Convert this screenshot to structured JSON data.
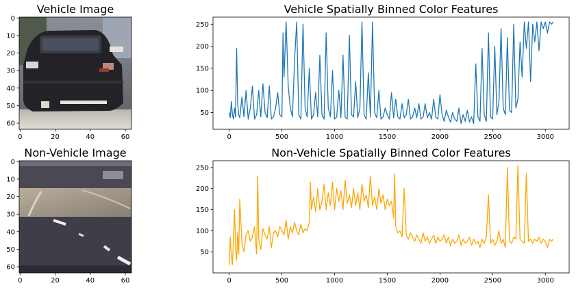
{
  "panels": [
    {
      "id": "vehicle-image",
      "title": "Vehicle Image",
      "type": "image",
      "xticks": [
        0,
        20,
        40,
        60
      ],
      "yticks": [
        0,
        10,
        20,
        30,
        40,
        50,
        60
      ],
      "xlim": [
        -0.5,
        63.5
      ],
      "ylim": [
        -0.5,
        63.5
      ]
    },
    {
      "id": "non-vehicle-image",
      "title": "Non-Vehicle Image",
      "type": "image",
      "xticks": [
        0,
        20,
        40,
        60
      ],
      "yticks": [
        0,
        10,
        20,
        30,
        40,
        50,
        60
      ],
      "xlim": [
        -0.5,
        63.5
      ],
      "ylim": [
        -0.5,
        63.5
      ]
    }
  ],
  "chart_data": [
    {
      "id": "vehicle-features",
      "type": "line",
      "title": "Vehicle Spatially Binned Color Features",
      "color": "#1f77b4",
      "xlim": [
        -154,
        3226
      ],
      "ylim": [
        12,
        266
      ],
      "xticks": [
        0,
        500,
        1000,
        1500,
        2000,
        2500,
        3000
      ],
      "yticks": [
        50,
        100,
        150,
        200,
        250
      ],
      "x": [
        0,
        10,
        20,
        30,
        40,
        50,
        60,
        70,
        80,
        90,
        100,
        120,
        140,
        160,
        180,
        200,
        220,
        240,
        260,
        280,
        300,
        320,
        340,
        360,
        380,
        400,
        420,
        440,
        460,
        480,
        500,
        510,
        520,
        540,
        560,
        580,
        600,
        620,
        640,
        660,
        680,
        700,
        720,
        740,
        760,
        780,
        800,
        820,
        840,
        860,
        880,
        900,
        920,
        940,
        960,
        980,
        1000,
        1020,
        1040,
        1060,
        1080,
        1100,
        1120,
        1140,
        1160,
        1180,
        1200,
        1220,
        1240,
        1260,
        1280,
        1300,
        1320,
        1340,
        1360,
        1380,
        1400,
        1420,
        1440,
        1460,
        1480,
        1500,
        1520,
        1540,
        1560,
        1580,
        1600,
        1620,
        1640,
        1660,
        1680,
        1700,
        1720,
        1740,
        1760,
        1780,
        1800,
        1820,
        1840,
        1860,
        1880,
        1900,
        1920,
        1940,
        1960,
        1980,
        2000,
        2020,
        2040,
        2060,
        2080,
        2100,
        2120,
        2140,
        2160,
        2180,
        2200,
        2220,
        2240,
        2260,
        2280,
        2300,
        2320,
        2340,
        2360,
        2380,
        2400,
        2420,
        2440,
        2460,
        2480,
        2500,
        2520,
        2540,
        2560,
        2580,
        2600,
        2620,
        2640,
        2660,
        2680,
        2700,
        2720,
        2740,
        2760,
        2780,
        2800,
        2820,
        2840,
        2860,
        2880,
        2900,
        2920,
        2940,
        2960,
        2980,
        3000,
        3020,
        3040,
        3060,
        3072
      ],
      "y": [
        50,
        38,
        75,
        45,
        35,
        60,
        40,
        195,
        70,
        45,
        38,
        85,
        40,
        100,
        35,
        60,
        110,
        35,
        45,
        100,
        40,
        115,
        50,
        38,
        110,
        35,
        40,
        60,
        95,
        45,
        40,
        230,
        130,
        255,
        110,
        60,
        40,
        170,
        255,
        45,
        35,
        250,
        60,
        40,
        150,
        35,
        45,
        95,
        40,
        180,
        45,
        35,
        230,
        60,
        40,
        145,
        35,
        40,
        100,
        38,
        180,
        40,
        35,
        225,
        45,
        40,
        120,
        38,
        60,
        255,
        45,
        35,
        140,
        40,
        255,
        50,
        38,
        100,
        35,
        40,
        60,
        45,
        35,
        95,
        38,
        80,
        40,
        35,
        70,
        38,
        45,
        80,
        35,
        40,
        60,
        38,
        70,
        35,
        40,
        70,
        38,
        50,
        35,
        80,
        40,
        35,
        90,
        45,
        30,
        55,
        40,
        28,
        50,
        35,
        30,
        60,
        25,
        45,
        30,
        55,
        28,
        40,
        25,
        160,
        40,
        30,
        195,
        45,
        30,
        230,
        40,
        35,
        200,
        45,
        75,
        240,
        60,
        45,
        220,
        55,
        50,
        250,
        60,
        80,
        210,
        130,
        255,
        195,
        255,
        120,
        250,
        210,
        255,
        190,
        255,
        240,
        255,
        230,
        255,
        250,
        255
      ]
    },
    {
      "id": "non-vehicle-features",
      "type": "line",
      "title": "Non-Vehicle Spatially Binned Color Features",
      "color": "#ffa500",
      "xlim": [
        -154,
        3226
      ],
      "ylim": [
        0,
        266
      ],
      "xticks": [
        0,
        500,
        1000,
        1500,
        2000,
        2500,
        3000
      ],
      "yticks": [
        50,
        100,
        150,
        200,
        250
      ],
      "x": [
        0,
        10,
        20,
        30,
        40,
        50,
        60,
        70,
        80,
        90,
        100,
        120,
        140,
        160,
        180,
        200,
        220,
        240,
        260,
        270,
        280,
        300,
        320,
        340,
        360,
        380,
        400,
        420,
        440,
        460,
        480,
        500,
        520,
        540,
        560,
        580,
        600,
        620,
        640,
        660,
        680,
        700,
        720,
        740,
        760,
        770,
        780,
        800,
        820,
        840,
        860,
        880,
        900,
        920,
        940,
        960,
        980,
        1000,
        1020,
        1040,
        1060,
        1080,
        1100,
        1120,
        1140,
        1160,
        1180,
        1200,
        1220,
        1240,
        1260,
        1280,
        1300,
        1320,
        1340,
        1360,
        1380,
        1400,
        1420,
        1440,
        1460,
        1480,
        1500,
        1520,
        1540,
        1560,
        1570,
        1580,
        1600,
        1620,
        1640,
        1660,
        1680,
        1700,
        1720,
        1740,
        1760,
        1780,
        1800,
        1820,
        1840,
        1860,
        1880,
        1900,
        1920,
        1940,
        1960,
        1980,
        2000,
        2020,
        2040,
        2060,
        2080,
        2100,
        2120,
        2140,
        2160,
        2180,
        2200,
        2220,
        2240,
        2260,
        2280,
        2300,
        2320,
        2340,
        2360,
        2380,
        2400,
        2420,
        2440,
        2460,
        2480,
        2500,
        2520,
        2540,
        2560,
        2580,
        2600,
        2620,
        2640,
        2660,
        2680,
        2700,
        2720,
        2740,
        2760,
        2780,
        2800,
        2820,
        2840,
        2860,
        2880,
        2900,
        2920,
        2940,
        2960,
        2980,
        3000,
        3020,
        3040,
        3060,
        3072
      ],
      "y": [
        18,
        85,
        40,
        20,
        75,
        150,
        60,
        30,
        95,
        45,
        175,
        70,
        50,
        90,
        100,
        75,
        85,
        110,
        45,
        230,
        80,
        55,
        105,
        90,
        80,
        110,
        60,
        95,
        100,
        85,
        110,
        100,
        90,
        125,
        80,
        110,
        95,
        120,
        100,
        90,
        115,
        95,
        105,
        100,
        120,
        215,
        150,
        180,
        145,
        200,
        150,
        170,
        210,
        150,
        190,
        160,
        215,
        150,
        200,
        170,
        195,
        150,
        220,
        165,
        185,
        155,
        200,
        160,
        190,
        150,
        210,
        170,
        185,
        155,
        230,
        160,
        180,
        150,
        200,
        165,
        185,
        150,
        175,
        160,
        170,
        130,
        235,
        110,
        95,
        100,
        85,
        200,
        90,
        80,
        95,
        85,
        75,
        90,
        80,
        70,
        95,
        75,
        85,
        70,
        80,
        90,
        70,
        85,
        75,
        80,
        90,
        70,
        85,
        65,
        80,
        70,
        75,
        90,
        65,
        80,
        70,
        75,
        85,
        65,
        80,
        70,
        75,
        60,
        80,
        70,
        85,
        185,
        70,
        80,
        65,
        75,
        100,
        70,
        80,
        60,
        250,
        75,
        70,
        85,
        80,
        255,
        80,
        75,
        70,
        235,
        75,
        80,
        70,
        80,
        75,
        85,
        70,
        80,
        75,
        60,
        80,
        75,
        80
      ]
    }
  ]
}
